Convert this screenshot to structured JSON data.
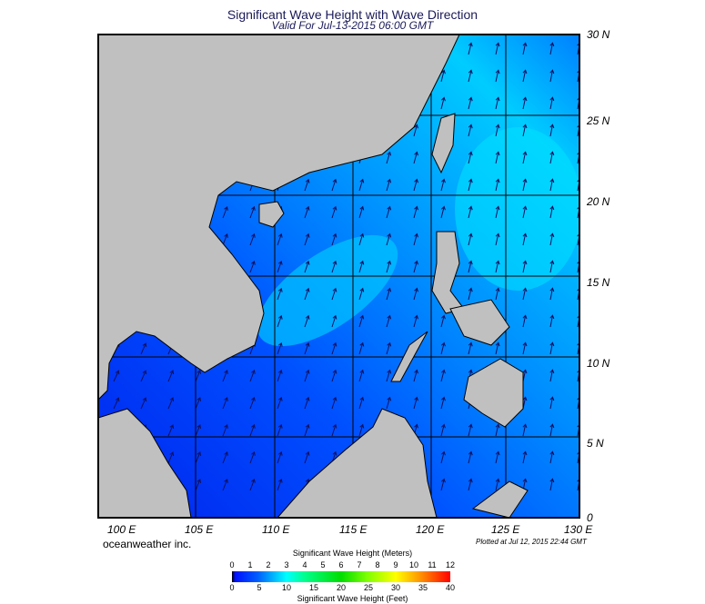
{
  "title": "Significant Wave Height with Wave Direction",
  "subtitle": "Valid For Jul-13-2015 06:00 GMT",
  "lat_labels": [
    "30 N",
    "25 N",
    "20 N",
    "15 N",
    "10 N",
    "5 N",
    "0"
  ],
  "lon_labels": [
    "100 E",
    "105 E",
    "110 E",
    "115 E",
    "120 E",
    "125 E",
    "130 E"
  ],
  "brand": "oceanweather inc.",
  "plotted": "Plotted at Jul 12, 2015 22:44 GMT",
  "colorbar": {
    "meters_title": "Significant Wave Height (Meters)",
    "meters_ticks": [
      "0",
      "1",
      "2",
      "3",
      "4",
      "5",
      "6",
      "7",
      "8",
      "9",
      "10",
      "11",
      "12"
    ],
    "feet_title": "Significant Wave Height (Feet)",
    "feet_ticks": [
      "0",
      "5",
      "10",
      "15",
      "20",
      "25",
      "30",
      "35",
      "40"
    ]
  },
  "colors": {
    "land": "#c0c0c0",
    "ocean_low": "#0033ff",
    "ocean_mid": "#0099ff",
    "ocean_high": "#00ddff",
    "arrow": "#101060"
  },
  "wave_direction": "toward north-northeast"
}
